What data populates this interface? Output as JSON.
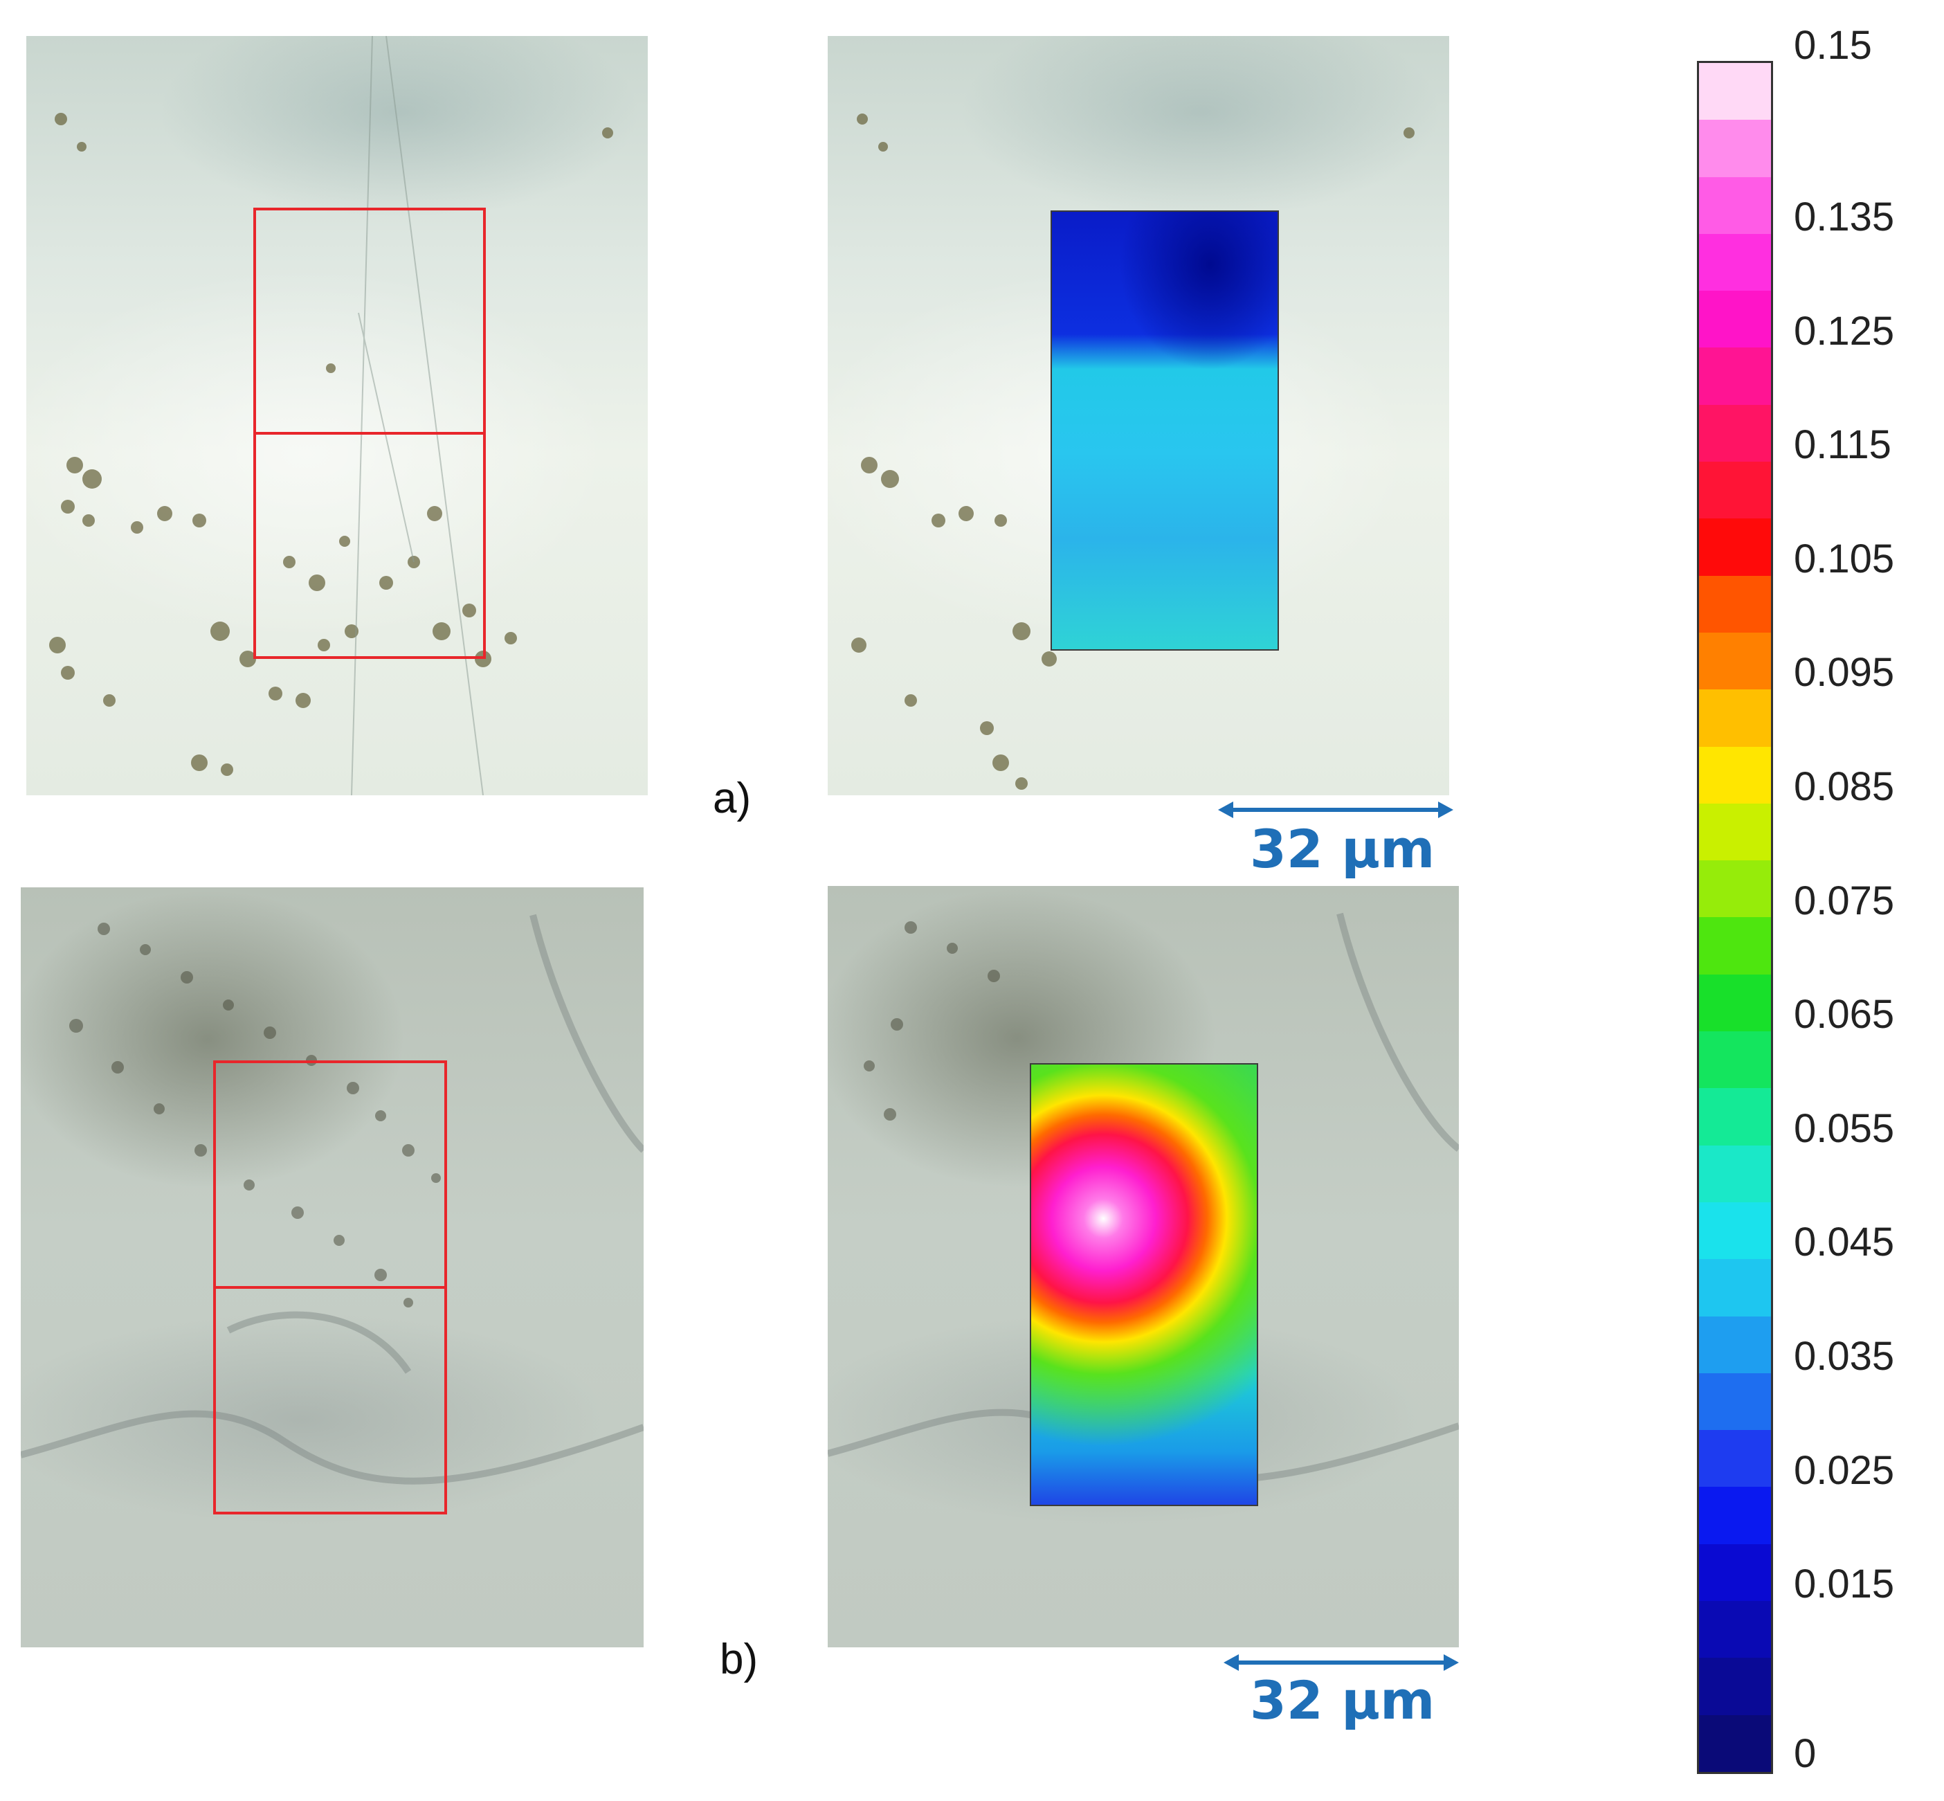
{
  "panels": [
    {
      "label": "a)",
      "scale_bar": "32 μm"
    },
    {
      "label": "b)",
      "scale_bar": "32 μm"
    }
  ],
  "colorbar": {
    "tick_labels": [
      "0.15",
      "0.135",
      "0.125",
      "0.115",
      "0.105",
      "0.095",
      "0.085",
      "0.075",
      "0.065",
      "0.055",
      "0.045",
      "0.035",
      "0.025",
      "0.015",
      "0"
    ],
    "colors_top_to_bottom": [
      "#ffd9f6",
      "#ff8bec",
      "#ff5be6",
      "#ff2fe0",
      "#ff14c8",
      "#ff1493",
      "#ff1464",
      "#ff1436",
      "#ff0a0a",
      "#ff5500",
      "#ff8000",
      "#ffbf00",
      "#ffe600",
      "#c9f000",
      "#96ec0a",
      "#4ee60f",
      "#18e02a",
      "#14e55e",
      "#14ea96",
      "#1ae8c8",
      "#1ae2ec",
      "#1ec6f0",
      "#1e9ef0",
      "#1e6ef0",
      "#1e3cf0",
      "#0a19f0",
      "#0a0ad2",
      "#0a0ab4",
      "#0a0a96",
      "#0a0a78"
    ]
  }
}
